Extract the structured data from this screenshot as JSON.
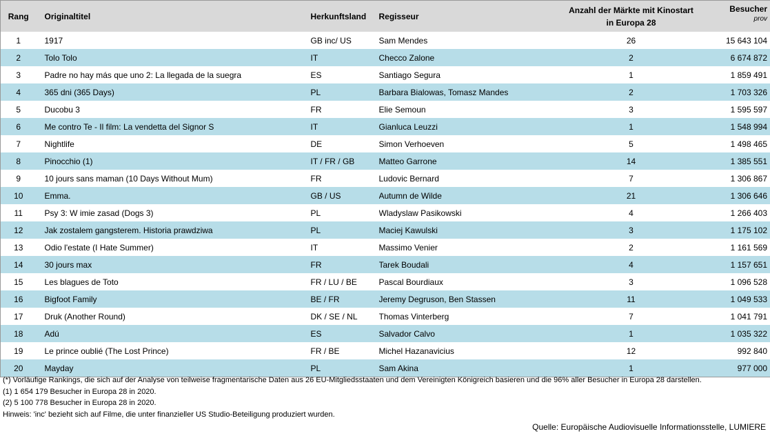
{
  "table": {
    "columns": [
      "Rang",
      "Originaltitel",
      "Herkunftsland",
      "Regisseur",
      {
        "lines": [
          "Anzahl der Märkte mit Kinostart",
          "in Europa 28"
        ]
      },
      {
        "label": "Besucher",
        "note": "prov"
      }
    ],
    "rows": [
      [
        "1",
        "1917",
        "GB inc/ US",
        "Sam Mendes",
        "26",
        "15 643 104"
      ],
      [
        "2",
        "Tolo Tolo",
        "IT",
        "Checco Zalone",
        "2",
        "6 674 872"
      ],
      [
        "3",
        "Padre no hay más que uno 2: La llegada de la suegra",
        "ES",
        "Santiago Segura",
        "1",
        "1 859 491"
      ],
      [
        "4",
        "365 dni (365 Days)",
        "PL",
        "Barbara Bialowas, Tomasz Mandes",
        "2",
        "1 703 326"
      ],
      [
        "5",
        "Ducobu 3",
        "FR",
        "Elie Semoun",
        "3",
        "1 595 597"
      ],
      [
        "6",
        "Me contro Te - Il film: La vendetta del Signor S",
        "IT",
        "Gianluca Leuzzi",
        "1",
        "1 548 994"
      ],
      [
        "7",
        "Nightlife",
        "DE",
        "Simon Verhoeven",
        "5",
        "1 498 465"
      ],
      [
        "8",
        "Pinocchio (1)",
        "IT / FR / GB",
        "Matteo Garrone",
        "14",
        "1 385 551"
      ],
      [
        "9",
        "10 jours sans maman (10 Days Without Mum)",
        "FR",
        "Ludovic Bernard",
        "7",
        "1 306 867"
      ],
      [
        "10",
        "Emma.",
        "GB / US",
        "Autumn de Wilde",
        "21",
        "1 306 646"
      ],
      [
        "11",
        "Psy 3: W imie zasad (Dogs 3)",
        "PL",
        "Wladyslaw Pasikowski",
        "4",
        "1 266 403"
      ],
      [
        "12",
        "Jak zostalem gangsterem. Historia prawdziwa",
        "PL",
        "Maciej Kawulski",
        "3",
        "1 175 102"
      ],
      [
        "13",
        "Odio l'estate (I Hate Summer)",
        "IT",
        "Massimo Venier",
        "2",
        "1 161 569"
      ],
      [
        "14",
        "30 jours max",
        "FR",
        "Tarek Boudali",
        "4",
        "1 157 651"
      ],
      [
        "15",
        "Les blagues de Toto",
        "FR / LU / BE",
        "Pascal Bourdiaux",
        "3",
        "1 096 528"
      ],
      [
        "16",
        "Bigfoot Family",
        "BE / FR",
        "Jeremy Degruson, Ben Stassen",
        "11",
        "1 049 533"
      ],
      [
        "17",
        "Druk (Another Round)",
        "DK / SE / NL",
        "Thomas Vinterberg",
        "7",
        "1 041 791"
      ],
      [
        "18",
        "Adú",
        "ES",
        "Salvador Calvo",
        "1",
        "1 035 322"
      ],
      [
        "19",
        "Le prince oublié (The Lost Prince)",
        "FR / BE",
        "Michel Hazanavicius",
        "12",
        "992 840"
      ],
      [
        "20",
        "Mayday",
        "PL",
        "Sam Akina",
        "1",
        "977 000"
      ]
    ]
  },
  "notes": [
    "(*) Vorläufige Rankings, die sich auf der Analyse von teilweise fragmentarische Daten aus 26 EU-Mitgliedsstaaten und dem Vereinigten Königreich basieren und die 96% aller Besucher in Europa 28 darstellen.",
    "(1) 1 654 179  Besucher in Europa 28 in 2020.",
    "(2) 5 100 778 Besucher in Europa 28 in 2020.",
    "Hinweis: 'inc' bezieht sich auf Filme, die unter finanzieller US Studio-Beteiligung produziert wurden."
  ],
  "source": "Quelle: Europäische Audiovisuelle Informationsstelle, LUMIERE"
}
